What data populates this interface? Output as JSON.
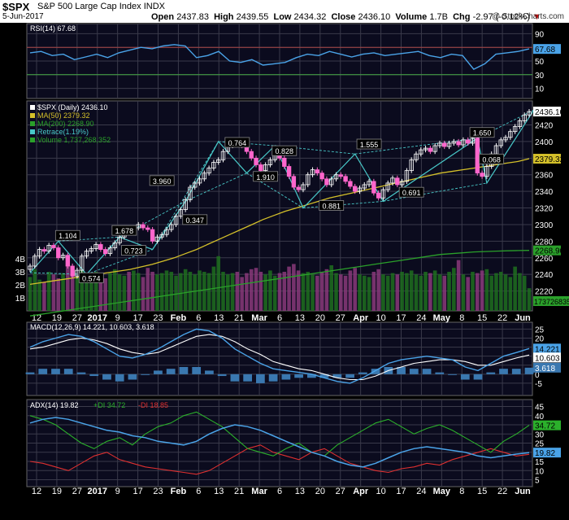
{
  "header": {
    "symbol": "$SPX",
    "name": "S&P 500 Large Cap Index",
    "exchange": "INDX",
    "date": "5-Jun-2017",
    "open_label": "Open",
    "open": "2437.83",
    "high_label": "High",
    "high": "2439.55",
    "low_label": "Low",
    "low": "2434.32",
    "close_label": "Close",
    "close": "2436.10",
    "volume_label": "Volume",
    "volume": "1.7B",
    "chg_label": "Chg",
    "chg": "-2.97 (-0.12%)",
    "brand": "@ StockCharts.com"
  },
  "colors": {
    "background": "#0b0b1e",
    "grid": "#3a3a4a",
    "price": "#ffffff",
    "bear": "#ff66cc",
    "ma50": "#d4c02a",
    "ma200": "#2aa02a",
    "retrace": "#48c8c8",
    "rsi": "#4aa3e8",
    "macd": "#4aa3e8",
    "signal": "#ffffff",
    "plus_di": "#2bb02b",
    "minus_di": "#e03030",
    "adx": "#4aa3e8"
  },
  "x_axis": {
    "labels": [
      "12",
      "19",
      "27",
      "2017",
      "9",
      "17",
      "23",
      "Feb",
      "6",
      "13",
      "21",
      "Mar",
      "6",
      "13",
      "20",
      "27",
      "Apr",
      "10",
      "17",
      "24",
      "May",
      "8",
      "15",
      "22",
      "Jun"
    ],
    "positions": [
      0,
      1,
      2,
      3,
      4,
      5,
      6,
      7,
      8,
      9,
      10,
      11,
      12,
      13,
      14,
      15,
      16,
      17,
      18,
      19,
      20,
      21,
      22,
      23,
      24
    ],
    "bold": [
      "2017",
      "Feb",
      "Mar",
      "Apr",
      "May",
      "Jun"
    ]
  },
  "chart_data": [
    {
      "type": "line",
      "title": "RSI(14) 67.68",
      "ylim": [
        0,
        100
      ],
      "yticks": [
        10,
        30,
        50,
        70,
        90
      ],
      "last_value": "67.68",
      "series": [
        {
          "name": "RSI(14)",
          "values": [
            62,
            64,
            58,
            60,
            52,
            56,
            60,
            55,
            62,
            66,
            70,
            68,
            72,
            74,
            72,
            55,
            58,
            64,
            50,
            48,
            52,
            44,
            46,
            48,
            55,
            60,
            58,
            64,
            60,
            56,
            60,
            62,
            58,
            60,
            62,
            64,
            58,
            55,
            60,
            58,
            38,
            46,
            60,
            62,
            64,
            67.68
          ]
        }
      ]
    },
    {
      "type": "candlestick",
      "title": "$SPX (Daily) 2436.10",
      "ylim": [
        2200,
        2445
      ],
      "yticks": [
        2220,
        2240,
        2260,
        2280,
        2300,
        2320,
        2340,
        2360,
        2380,
        2400,
        2420
      ],
      "last_price": "2436.10",
      "ma50_value": "2379.32",
      "ma200_value": "2268.90",
      "volume_value": "1737268352",
      "volume_ticks": [
        "1B",
        "2B",
        "3B",
        "4B"
      ],
      "legend": [
        {
          "label": "$SPX (Daily) 2436.10",
          "color": "#ffffff"
        },
        {
          "label": "MA(50) 2379.32",
          "color": "#d4c02a"
        },
        {
          "label": "MA(200) 2268.90",
          "color": "#2aa02a"
        },
        {
          "label": "Retrace(1.19%)",
          "color": "#48c8c8"
        },
        {
          "label": "Volume 1,737,268,352",
          "color": "#2aa02a"
        }
      ],
      "close": [
        2250,
        2262,
        2270,
        2268,
        2275,
        2272,
        2260,
        2263,
        2250,
        2238,
        2245,
        2262,
        2268,
        2271,
        2276,
        2270,
        2265,
        2272,
        2278,
        2285,
        2292,
        2290,
        2296,
        2300,
        2296,
        2294,
        2280,
        2285,
        2288,
        2294,
        2300,
        2310,
        2318,
        2330,
        2345,
        2350,
        2355,
        2362,
        2368,
        2375,
        2378,
        2388,
        2395,
        2400,
        2398,
        2395,
        2388,
        2380,
        2372,
        2365,
        2372,
        2378,
        2385,
        2380,
        2370,
        2358,
        2345,
        2342,
        2348,
        2360,
        2366,
        2362,
        2355,
        2348,
        2355,
        2360,
        2358,
        2352,
        2346,
        2340,
        2344,
        2348,
        2352,
        2338,
        2332,
        2342,
        2350,
        2356,
        2348,
        2352,
        2365,
        2378,
        2385,
        2390,
        2392,
        2388,
        2395,
        2398,
        2394,
        2398,
        2400,
        2396,
        2402,
        2398,
        2404,
        2362,
        2358,
        2370,
        2385,
        2395,
        2402,
        2405,
        2412,
        2418,
        2425,
        2432,
        2436.1
      ],
      "ma50": [
        2228,
        2230,
        2232,
        2234,
        2236,
        2238,
        2240,
        2242,
        2244,
        2246,
        2249,
        2252,
        2256,
        2260,
        2265,
        2270,
        2276,
        2282,
        2288,
        2294,
        2300,
        2306,
        2311,
        2316,
        2320,
        2324,
        2328,
        2332,
        2335,
        2338,
        2341,
        2344,
        2347,
        2350,
        2353,
        2356,
        2359,
        2362,
        2364,
        2366,
        2368,
        2370,
        2372,
        2374,
        2376,
        2379.32
      ],
      "ma200": [
        2190,
        2192,
        2194,
        2196,
        2198,
        2200,
        2202,
        2204,
        2206,
        2208,
        2210,
        2212,
        2214,
        2216,
        2218,
        2220,
        2222,
        2224,
        2226,
        2228,
        2230,
        2232,
        2234,
        2236,
        2238,
        2240,
        2242,
        2244,
        2246,
        2248,
        2250,
        2252,
        2254,
        2256,
        2258,
        2260,
        2262,
        2264,
        2265,
        2266,
        2267,
        2267.5,
        2268,
        2268.4,
        2268.7,
        2268.9
      ],
      "volume": [
        2.6,
        3.2,
        2.4,
        2.2,
        3.0,
        2.8,
        2.5,
        2.9,
        3.6,
        2.7,
        2.6,
        3.1,
        2.9,
        2.8,
        3.0,
        2.6,
        2.5,
        2.9,
        3.2,
        2.8,
        2.7,
        3.0,
        3.1,
        2.9,
        2.6,
        3.3,
        3.0,
        2.8,
        2.9,
        3.1,
        3.0,
        2.7,
        2.9,
        3.2,
        3.0,
        2.8,
        3.1,
        3.0,
        2.9,
        3.4,
        4.2,
        3.0,
        2.8,
        2.9,
        3.0,
        2.6,
        2.9,
        3.2,
        3.3,
        3.0,
        2.8,
        3.1,
        2.7,
        2.9,
        3.0,
        3.4,
        3.6,
        3.1,
        2.9,
        3.0,
        2.8,
        2.7,
        3.0,
        3.2,
        3.5,
        2.9,
        2.8,
        2.7,
        3.1,
        3.3,
        2.8,
        2.7,
        2.6,
        3.0,
        3.2,
        2.8,
        2.7,
        2.9,
        2.8,
        3.0,
        2.9,
        3.1,
        2.8,
        2.7,
        3.0,
        2.9,
        3.1,
        2.8,
        2.7,
        3.0,
        3.3,
        3.9,
        2.8,
        2.6,
        3.0,
        2.9,
        3.1,
        3.2,
        2.7,
        2.9,
        3.0,
        2.8,
        2.6,
        3.4,
        2.9,
        2.7,
        1.74
      ],
      "retrace_points": [
        {
          "i": 0,
          "v": 2242
        },
        {
          "i": 6,
          "v": 2280
        },
        {
          "i": 12,
          "v": 2240
        },
        {
          "i": 19,
          "v": 2285
        },
        {
          "i": 26,
          "v": 2270
        },
        {
          "i": 33,
          "v": 2328
        },
        {
          "i": 40,
          "v": 2400
        },
        {
          "i": 46,
          "v": 2362
        },
        {
          "i": 52,
          "v": 2395
        },
        {
          "i": 58,
          "v": 2320
        },
        {
          "i": 69,
          "v": 2385
        },
        {
          "i": 75,
          "v": 2328
        },
        {
          "i": 95,
          "v": 2404
        },
        {
          "i": 97,
          "v": 2350
        },
        {
          "i": 107,
          "v": 2438
        }
      ],
      "retrace_labels": [
        {
          "i": 8,
          "v": 2286,
          "text": "1.104"
        },
        {
          "i": 13,
          "v": 2235,
          "text": "0.574"
        },
        {
          "i": 20,
          "v": 2292,
          "text": "1.678"
        },
        {
          "i": 22,
          "v": 2268,
          "text": "0.723"
        },
        {
          "i": 28,
          "v": 2352,
          "text": "3.960"
        },
        {
          "i": 35,
          "v": 2305,
          "text": "0.347"
        },
        {
          "i": 44,
          "v": 2398,
          "text": "0.764"
        },
        {
          "i": 50,
          "v": 2357,
          "text": "1.910"
        },
        {
          "i": 54,
          "v": 2388,
          "text": "0.828"
        },
        {
          "i": 64,
          "v": 2322,
          "text": "0.881"
        },
        {
          "i": 72,
          "v": 2396,
          "text": "1.555"
        },
        {
          "i": 81,
          "v": 2338,
          "text": "0.691"
        },
        {
          "i": 96,
          "v": 2410,
          "text": "1.650"
        },
        {
          "i": 98,
          "v": 2378,
          "text": "0.068"
        }
      ]
    },
    {
      "type": "line",
      "title": "MACD(12,26,9) 14.221, 10.603, 3.618",
      "ylim": [
        -10,
        27
      ],
      "yticks": [
        -5,
        0,
        5,
        10,
        15,
        20,
        25
      ],
      "macd_value": "14.221",
      "signal_value": "10.603",
      "hist_value": "3.618",
      "series": [
        {
          "name": "MACD",
          "values": [
            15,
            18,
            20,
            22,
            21,
            18,
            14,
            10,
            9,
            11,
            14,
            18,
            22,
            25,
            24,
            20,
            14,
            10,
            6,
            3,
            2,
            1,
            0,
            -2,
            -4,
            -5,
            -2,
            2,
            6,
            8,
            9,
            10,
            9,
            8,
            4,
            2,
            6,
            10,
            12,
            14.221
          ]
        },
        {
          "name": "Signal",
          "values": [
            14,
            15,
            17,
            19,
            20,
            19,
            17,
            14,
            12,
            11,
            12,
            15,
            18,
            21,
            22,
            21,
            18,
            14,
            11,
            7,
            5,
            3,
            2,
            0,
            -2,
            -3,
            -3,
            -1,
            2,
            4,
            6,
            7,
            8,
            8,
            7,
            5,
            5,
            7,
            9,
            10.603
          ]
        }
      ]
    },
    {
      "type": "line",
      "title": "ADX(14) 19.82 +DI 34.72 -DI 18.85",
      "ylim": [
        3,
        47
      ],
      "yticks": [
        5,
        10,
        15,
        20,
        25,
        30,
        35,
        40,
        45
      ],
      "legend": [
        {
          "label": "ADX(14) 19.82",
          "color": "#4aa3e8"
        },
        {
          "label": "+DI 34.72",
          "color": "#2bb02b"
        },
        {
          "label": "-DI 18.85",
          "color": "#e03030"
        }
      ],
      "plus_di_value": "34.72",
      "adx_value": "19.82",
      "series": [
        {
          "name": "ADX(14)",
          "values": [
            36,
            38,
            39,
            38,
            36,
            34,
            32,
            31,
            29,
            28,
            26,
            25,
            24,
            26,
            30,
            33,
            35,
            34,
            32,
            29,
            26,
            23,
            20,
            18,
            15,
            13,
            12,
            14,
            17,
            20,
            22,
            23,
            22,
            21,
            20,
            18,
            17,
            18,
            19,
            19.82
          ]
        },
        {
          "name": "+DI",
          "values": [
            40,
            38,
            35,
            30,
            25,
            22,
            26,
            28,
            24,
            30,
            34,
            36,
            40,
            42,
            38,
            34,
            28,
            22,
            20,
            18,
            22,
            25,
            20,
            18,
            24,
            28,
            32,
            36,
            38,
            34,
            30,
            33,
            35,
            32,
            28,
            24,
            20,
            26,
            30,
            34.72
          ]
        },
        {
          "name": "-DI",
          "values": [
            15,
            14,
            12,
            10,
            14,
            18,
            20,
            16,
            14,
            12,
            11,
            10,
            9,
            8,
            10,
            14,
            18,
            22,
            24,
            20,
            18,
            16,
            20,
            22,
            18,
            14,
            12,
            10,
            9,
            11,
            12,
            14,
            13,
            16,
            18,
            20,
            22,
            20,
            18,
            18.85
          ]
        }
      ]
    }
  ]
}
